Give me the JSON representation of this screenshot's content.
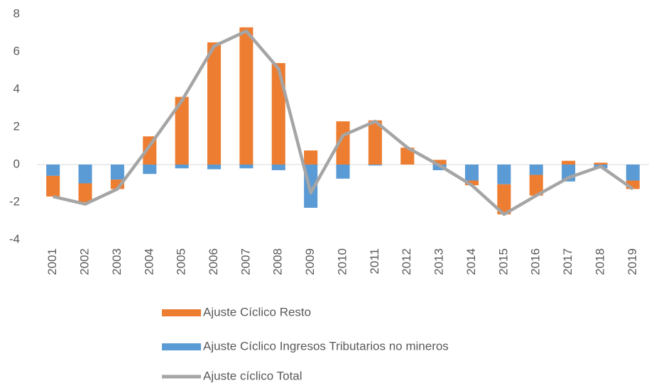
{
  "chart_data": {
    "type": "bar",
    "stacked": true,
    "categories": [
      "2001",
      "2002",
      "2003",
      "2004",
      "2005",
      "2006",
      "2007",
      "2008",
      "2009",
      "2010",
      "2011",
      "2012",
      "2013",
      "2014",
      "2015",
      "2016",
      "2017",
      "2018",
      "2019"
    ],
    "series": [
      {
        "name": "Ajuste Cíclico Resto",
        "color": "#ED7D31",
        "type": "bar",
        "values": [
          -1.1,
          -1.0,
          -0.5,
          1.5,
          3.6,
          6.5,
          7.3,
          5.4,
          0.75,
          2.3,
          2.35,
          0.9,
          0.25,
          -0.25,
          -1.6,
          -1.1,
          0.2,
          0.1,
          -0.45
        ]
      },
      {
        "name": "Ajuste Cíclico Ingresos Tributarios no mineros",
        "color": "#5B9BD5",
        "type": "bar",
        "values": [
          -0.6,
          -1.0,
          -0.8,
          -0.5,
          -0.2,
          -0.25,
          -0.2,
          -0.3,
          -2.3,
          -0.75,
          -0.05,
          0.0,
          -0.3,
          -0.85,
          -1.05,
          -0.55,
          -0.9,
          -0.2,
          -0.85
        ]
      },
      {
        "name": "Ajuste cíclico Total",
        "color": "#A5A5A5",
        "type": "line",
        "values": [
          -1.7,
          -2.1,
          -1.3,
          1.0,
          3.4,
          6.3,
          7.1,
          5.1,
          -1.5,
          1.55,
          2.3,
          0.9,
          -0.05,
          -1.1,
          -2.65,
          -1.65,
          -0.7,
          -0.1,
          -1.3
        ]
      }
    ],
    "ylim": [
      -4,
      8
    ],
    "yticks": [
      -4,
      -2,
      0,
      2,
      4,
      6,
      8
    ],
    "grid": false,
    "legend": "bottom"
  }
}
